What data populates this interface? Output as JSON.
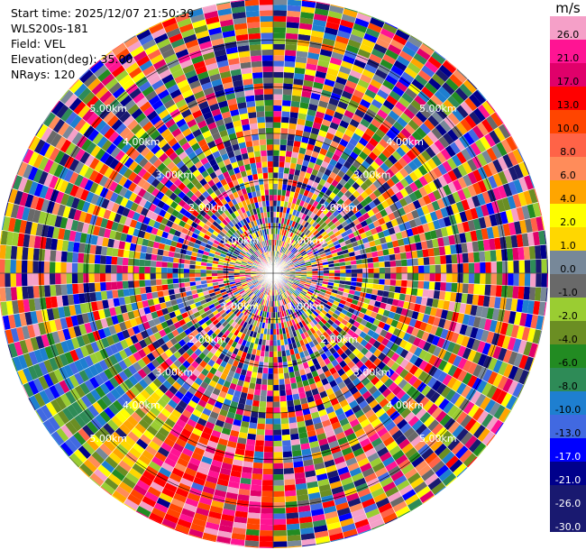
{
  "info": {
    "start_time": "Start time: 2025/12/07 21:50:39",
    "instrument": "WLS200s-181",
    "field": "Field: VEL",
    "elevation": "Elevation(deg): 35.00",
    "nrays": "NRays: 120"
  },
  "colorbar": {
    "unit": "m/s",
    "bins": [
      {
        "label": "26.0",
        "color": "#f5a0c8"
      },
      {
        "label": "21.0",
        "color": "#ff1493"
      },
      {
        "label": "17.0",
        "color": "#e0006a"
      },
      {
        "label": "13.0",
        "color": "#ff0000"
      },
      {
        "label": "10.0",
        "color": "#ff4500"
      },
      {
        "label": "8.0",
        "color": "#ff6347"
      },
      {
        "label": "6.0",
        "color": "#ff8c5a"
      },
      {
        "label": "4.0",
        "color": "#ffa500"
      },
      {
        "label": "2.0",
        "color": "#ffff00"
      },
      {
        "label": "1.0",
        "color": "#ffd700"
      },
      {
        "label": "0.0",
        "color": "#778899"
      },
      {
        "label": "-1.0",
        "color": "#696969"
      },
      {
        "label": "-2.0",
        "color": "#9acd32"
      },
      {
        "label": "-4.0",
        "color": "#6b8e23"
      },
      {
        "label": "-6.0",
        "color": "#228b22"
      },
      {
        "label": "-8.0",
        "color": "#2e8b57"
      },
      {
        "label": "-10.0",
        "color": "#1e7fd0"
      },
      {
        "label": "-13.0",
        "color": "#4169e1"
      },
      {
        "label": "-17.0",
        "color": "#0000ff"
      },
      {
        "label": "-21.0",
        "color": "#00008b"
      },
      {
        "label": "-26.0",
        "color": "#191970"
      },
      {
        "label": "-30.0",
        "color": "#191970"
      }
    ]
  },
  "chart_data": {
    "type": "heatmap",
    "projection": "polar (PPI)",
    "field": "VEL",
    "units": "m/s",
    "elevation_deg": 35.0,
    "n_rays": 120,
    "range_rings_km": [
      1.0,
      2.0,
      3.0,
      4.0,
      5.0
    ],
    "range_ring_labels": [
      "1.00km",
      "2.00km",
      "3.00km",
      "4.00km",
      "5.00km"
    ],
    "max_range_km": 5.9,
    "coherent_region": {
      "azimuth_deg_range": [
        180,
        250
      ],
      "min_range_km": 3.5,
      "velocity_trend": "negative near west, positive near south"
    },
    "cmap_levels": [
      26.0,
      21.0,
      17.0,
      13.0,
      10.0,
      8.0,
      6.0,
      4.0,
      2.0,
      1.0,
      0.0,
      -1.0,
      -2.0,
      -4.0,
      -6.0,
      -8.0,
      -10.0,
      -13.0,
      -17.0,
      -21.0,
      -26.0,
      -30.0
    ]
  }
}
